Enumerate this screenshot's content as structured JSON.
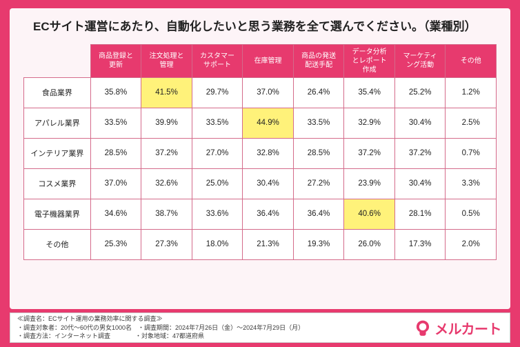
{
  "title": "ECサイト運営にあたり、自動化したいと思う業務を全て選んでください。（業種別）",
  "columns": [
    "商品登録と\n更新",
    "注文処理と\n管理",
    "カスタマー\nサポート",
    "在庫管理",
    "商品の発送\n配送手配",
    "データ分析\nとレポート\n作成",
    "マーケティ\nング活動",
    "その他"
  ],
  "rows": [
    {
      "label": "食品業界",
      "cells": [
        "35.8%",
        "41.5%",
        "29.7%",
        "37.0%",
        "26.4%",
        "35.4%",
        "25.2%",
        "1.2%"
      ],
      "highlight": [
        1
      ]
    },
    {
      "label": "アパレル業界",
      "cells": [
        "33.5%",
        "39.9%",
        "33.5%",
        "44.9%",
        "33.5%",
        "32.9%",
        "30.4%",
        "2.5%"
      ],
      "highlight": [
        3
      ]
    },
    {
      "label": "インテリア業界",
      "cells": [
        "28.5%",
        "37.2%",
        "27.0%",
        "32.8%",
        "28.5%",
        "37.2%",
        "37.2%",
        "0.7%"
      ],
      "highlight": []
    },
    {
      "label": "コスメ業界",
      "cells": [
        "37.0%",
        "32.6%",
        "25.0%",
        "30.4%",
        "27.2%",
        "23.9%",
        "30.4%",
        "3.3%"
      ],
      "highlight": []
    },
    {
      "label": "電子機器業界",
      "cells": [
        "34.6%",
        "38.7%",
        "33.6%",
        "36.4%",
        "36.4%",
        "40.6%",
        "28.1%",
        "0.5%"
      ],
      "highlight": [
        5
      ]
    },
    {
      "label": "その他",
      "cells": [
        "25.3%",
        "27.3%",
        "18.0%",
        "21.3%",
        "19.3%",
        "26.0%",
        "17.3%",
        "2.0%"
      ],
      "highlight": []
    }
  ],
  "footer": {
    "line1": "≪調査名：ECサイト運用の業務効率に関する調査≫",
    "line2": "・調査対象者：20代〜60代の男女1000名　・調査期間：2024年7月26日（金）〜2024年7月29日（月）",
    "line3": "・調査方法：インターネット調査　　　　・対象地域：47都道府県"
  },
  "logo_text": "メルカート",
  "colors": {
    "brand": "#e73a6e",
    "panel_bg": "#fdf4f7",
    "cell_bg": "#ffffff",
    "highlight_bg": "#fff27a",
    "border": "#d46a8a",
    "text": "#222222"
  }
}
